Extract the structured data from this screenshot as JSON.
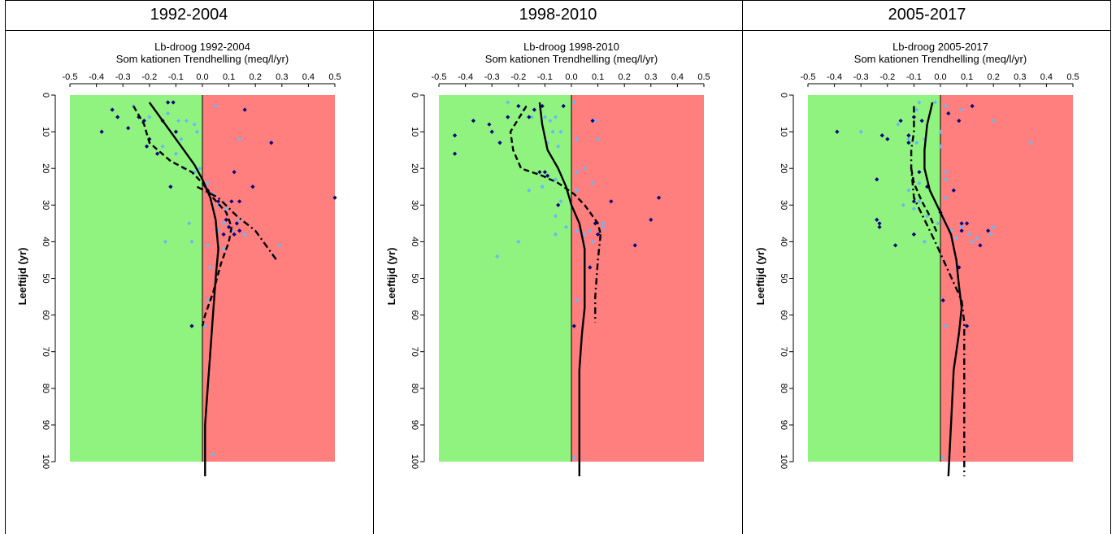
{
  "headers": [
    "1992-2004",
    "1998-2010",
    "2005-2017"
  ],
  "colors": {
    "negative_zone": "#90f37f",
    "positive_zone": "#ff7e7e",
    "light_points": "#69b8f7",
    "dark_points": "#00007f"
  },
  "chart_data": [
    {
      "type": "scatter",
      "title": "Lb-droog 1992-2004",
      "subtitle": "Som kationen Trendhelling (meq/l/yr)",
      "ylabel": "Leeftijd (yr)",
      "xlim": [
        -0.5,
        0.5
      ],
      "ylim": [
        0,
        100
      ],
      "xticks": [
        "-0.5",
        "-0.4",
        "-0.3",
        "-0.2",
        "-0.1",
        "0.0",
        "0.1",
        "0.2",
        "0.3",
        "0.4",
        "0.5"
      ],
      "yticks": [
        "0",
        "10",
        "20",
        "30",
        "40",
        "50",
        "60",
        "70",
        "80",
        "90",
        "100"
      ],
      "light_points": [
        [
          -0.26,
          3
        ],
        [
          -0.2,
          6
        ],
        [
          -0.13,
          5
        ],
        [
          -0.09,
          7
        ],
        [
          -0.06,
          7
        ],
        [
          -0.03,
          8
        ],
        [
          -0.02,
          10
        ],
        [
          -0.08,
          12
        ],
        [
          -0.15,
          14
        ],
        [
          -0.1,
          16
        ],
        [
          -0.07,
          20
        ],
        [
          -0.03,
          21
        ],
        [
          -0.01,
          20
        ],
        [
          0.02,
          24
        ],
        [
          -0.12,
          25
        ],
        [
          0.04,
          27
        ],
        [
          0.06,
          30
        ],
        [
          0.09,
          31
        ],
        [
          0.14,
          34
        ],
        [
          0.08,
          35
        ],
        [
          0.11,
          37
        ],
        [
          0.16,
          38
        ],
        [
          0.06,
          37
        ],
        [
          -0.05,
          35
        ],
        [
          -0.04,
          40
        ],
        [
          -0.14,
          40
        ],
        [
          0.02,
          41
        ],
        [
          0.29,
          41
        ],
        [
          0.27,
          44
        ],
        [
          0.03,
          47
        ],
        [
          0.02,
          56
        ],
        [
          0.01,
          63
        ],
        [
          0.04,
          98
        ],
        [
          0.05,
          3
        ],
        [
          0.14,
          12
        ],
        [
          0.08,
          42
        ]
      ],
      "dark_points": [
        [
          -0.38,
          10
        ],
        [
          -0.34,
          4
        ],
        [
          -0.32,
          6
        ],
        [
          -0.28,
          9
        ],
        [
          -0.24,
          6
        ],
        [
          -0.22,
          7
        ],
        [
          -0.2,
          12
        ],
        [
          -0.21,
          14
        ],
        [
          -0.17,
          16
        ],
        [
          -0.15,
          7
        ],
        [
          -0.13,
          2
        ],
        [
          -0.11,
          2
        ],
        [
          -0.1,
          10
        ],
        [
          0.16,
          4
        ],
        [
          0.26,
          13
        ],
        [
          0.12,
          21
        ],
        [
          0.19,
          25
        ],
        [
          -0.12,
          25
        ],
        [
          0.02,
          26
        ],
        [
          0.06,
          29
        ],
        [
          0.11,
          29
        ],
        [
          0.14,
          29
        ],
        [
          0.09,
          34
        ],
        [
          0.1,
          36
        ],
        [
          0.13,
          35
        ],
        [
          0.14,
          37
        ],
        [
          0.12,
          38
        ],
        [
          0.08,
          38
        ],
        [
          0.5,
          28
        ],
        [
          -0.04,
          63
        ]
      ],
      "series": [
        {
          "style": "solid",
          "points": [
            [
              -0.2,
              2
            ],
            [
              -0.14,
              8
            ],
            [
              -0.08,
              14
            ],
            [
              -0.03,
              19
            ],
            [
              0.0,
              23
            ],
            [
              0.03,
              28
            ],
            [
              0.05,
              34
            ],
            [
              0.06,
              42
            ],
            [
              0.05,
              50
            ],
            [
              0.04,
              60
            ],
            [
              0.03,
              70
            ],
            [
              0.02,
              80
            ],
            [
              0.01,
              90
            ],
            [
              0.01,
              104
            ]
          ]
        },
        {
          "style": "dashed",
          "points": [
            [
              -0.26,
              3
            ],
            [
              -0.22,
              8
            ],
            [
              -0.2,
              13
            ],
            [
              -0.12,
              18
            ],
            [
              -0.04,
              21
            ],
            [
              0.0,
              24
            ],
            [
              0.04,
              28
            ],
            [
              0.09,
              32
            ],
            [
              0.11,
              36
            ],
            [
              0.1,
              40
            ],
            [
              0.07,
              46
            ],
            [
              0.04,
              54
            ],
            [
              0.01,
              60
            ],
            [
              0.0,
              63
            ]
          ]
        },
        {
          "style": "dashdot",
          "points": [
            [
              -0.02,
              25
            ],
            [
              0.06,
              28
            ],
            [
              0.13,
              33
            ],
            [
              0.2,
              37
            ],
            [
              0.25,
              42
            ],
            [
              0.28,
              45
            ]
          ]
        }
      ]
    },
    {
      "type": "scatter",
      "title": "Lb-droog 1998-2010",
      "subtitle": "Som kationen Trendhelling (meq/l/yr)",
      "ylabel": "Leeftijd (yr)",
      "xlim": [
        -0.5,
        0.5
      ],
      "ylim": [
        0,
        100
      ],
      "xticks": [
        "-0.5",
        "-0.4",
        "-0.3",
        "-0.2",
        "-0.1",
        "0.0",
        "0.1",
        "0.2",
        "0.3",
        "0.4",
        "0.5"
      ],
      "yticks": [
        "0",
        "10",
        "20",
        "30",
        "40",
        "50",
        "60",
        "70",
        "80",
        "90",
        "100"
      ],
      "light_points": [
        [
          -0.24,
          2
        ],
        [
          -0.18,
          4
        ],
        [
          -0.15,
          6
        ],
        [
          -0.1,
          6
        ],
        [
          -0.08,
          7
        ],
        [
          -0.06,
          6
        ],
        [
          -0.07,
          10
        ],
        [
          -0.09,
          13
        ],
        [
          -0.05,
          14
        ],
        [
          -0.04,
          10
        ],
        [
          0.02,
          12
        ],
        [
          0.1,
          12
        ],
        [
          0.05,
          20
        ],
        [
          0.02,
          21
        ],
        [
          0.08,
          24
        ],
        [
          -0.06,
          23
        ],
        [
          -0.11,
          25
        ],
        [
          -0.16,
          26
        ],
        [
          0.02,
          26
        ],
        [
          -0.04,
          29
        ],
        [
          -0.06,
          33
        ],
        [
          -0.02,
          36
        ],
        [
          0.02,
          37
        ],
        [
          0.05,
          38
        ],
        [
          0.07,
          37
        ],
        [
          0.08,
          40
        ],
        [
          0.12,
          36
        ],
        [
          0.12,
          35
        ],
        [
          -0.06,
          38
        ],
        [
          -0.2,
          40
        ],
        [
          -0.28,
          44
        ],
        [
          0.05,
          41
        ],
        [
          0.02,
          56
        ],
        [
          0.01,
          63
        ],
        [
          0.01,
          99
        ],
        [
          0.09,
          7
        ],
        [
          0.01,
          2
        ]
      ],
      "dark_points": [
        [
          -0.44,
          11
        ],
        [
          -0.44,
          16
        ],
        [
          -0.37,
          7
        ],
        [
          -0.31,
          8
        ],
        [
          -0.3,
          10
        ],
        [
          -0.27,
          13
        ],
        [
          -0.24,
          6
        ],
        [
          -0.2,
          3
        ],
        [
          -0.16,
          6
        ],
        [
          -0.11,
          3
        ],
        [
          -0.14,
          4
        ],
        [
          -0.03,
          3
        ],
        [
          -0.1,
          21
        ],
        [
          -0.09,
          22
        ],
        [
          -0.12,
          21
        ],
        [
          -0.05,
          30
        ],
        [
          0.08,
          7
        ],
        [
          0.15,
          29
        ],
        [
          0.33,
          28
        ],
        [
          0.3,
          34
        ],
        [
          0.09,
          35
        ],
        [
          0.1,
          38
        ],
        [
          0.24,
          41
        ],
        [
          0.07,
          47
        ],
        [
          0.01,
          63
        ]
      ],
      "series": [
        {
          "style": "solid",
          "points": [
            [
              -0.12,
              2
            ],
            [
              -0.11,
              8
            ],
            [
              -0.09,
              15
            ],
            [
              -0.05,
              20
            ],
            [
              -0.02,
              25
            ],
            [
              0.0,
              30
            ],
            [
              0.03,
              35
            ],
            [
              0.05,
              42
            ],
            [
              0.05,
              50
            ],
            [
              0.05,
              58
            ],
            [
              0.04,
              65
            ],
            [
              0.03,
              75
            ],
            [
              0.03,
              90
            ],
            [
              0.03,
              104
            ]
          ]
        },
        {
          "style": "dashed",
          "points": [
            [
              -0.17,
              3
            ],
            [
              -0.23,
              10
            ],
            [
              -0.22,
              15
            ],
            [
              -0.19,
              20
            ],
            [
              -0.11,
              22
            ],
            [
              -0.05,
              24
            ],
            [
              0.01,
              27
            ],
            [
              0.05,
              30
            ],
            [
              0.1,
              35
            ],
            [
              0.11,
              38
            ]
          ]
        },
        {
          "style": "dashdot",
          "points": [
            [
              0.11,
              38
            ],
            [
              0.1,
              45
            ],
            [
              0.09,
              55
            ],
            [
              0.09,
              62
            ]
          ]
        }
      ]
    },
    {
      "type": "scatter",
      "title": "Lb-droog 2005-2017",
      "subtitle": "Som kationen Trendhelling (meq/l/yr)",
      "ylabel": "Leeftijd (yr)",
      "xlim": [
        -0.5,
        0.5
      ],
      "ylim": [
        0,
        100
      ],
      "xticks": [
        "-0.5",
        "-0.4",
        "-0.3",
        "-0.2",
        "-0.1",
        "0.0",
        "0.1",
        "0.2",
        "0.3",
        "0.4",
        "0.5"
      ],
      "yticks": [
        "0",
        "10",
        "20",
        "30",
        "40",
        "50",
        "60",
        "70",
        "80",
        "90",
        "100"
      ],
      "light_points": [
        [
          -0.08,
          2
        ],
        [
          -0.09,
          4
        ],
        [
          -0.1,
          6
        ],
        [
          -0.07,
          7
        ],
        [
          -0.02,
          2
        ],
        [
          0.02,
          3
        ],
        [
          0.08,
          4
        ],
        [
          0.2,
          7
        ],
        [
          -0.16,
          8
        ],
        [
          -0.3,
          10
        ],
        [
          -0.12,
          12
        ],
        [
          -0.09,
          13
        ],
        [
          -0.06,
          12
        ],
        [
          0.0,
          10
        ],
        [
          0.0,
          14
        ],
        [
          0.02,
          21
        ],
        [
          0.02,
          23
        ],
        [
          -0.08,
          24
        ],
        [
          -0.12,
          26
        ],
        [
          0.02,
          28
        ],
        [
          -0.08,
          29
        ],
        [
          -0.1,
          31
        ],
        [
          -0.14,
          30
        ],
        [
          -0.05,
          33
        ],
        [
          -0.01,
          35
        ],
        [
          0.04,
          37
        ],
        [
          0.08,
          36
        ],
        [
          0.11,
          38
        ],
        [
          0.12,
          40
        ],
        [
          0.14,
          39
        ],
        [
          0.19,
          38
        ],
        [
          0.2,
          36
        ],
        [
          0.34,
          13
        ],
        [
          0.06,
          39
        ],
        [
          -0.06,
          40
        ],
        [
          0.02,
          63
        ],
        [
          0.01,
          99
        ]
      ],
      "dark_points": [
        [
          -0.39,
          10
        ],
        [
          -0.22,
          11
        ],
        [
          -0.2,
          12
        ],
        [
          -0.15,
          7
        ],
        [
          -0.1,
          6
        ],
        [
          -0.07,
          7
        ],
        [
          -0.12,
          11
        ],
        [
          -0.12,
          13
        ],
        [
          0.03,
          5
        ],
        [
          0.07,
          7
        ],
        [
          0.12,
          3
        ],
        [
          -0.24,
          23
        ],
        [
          -0.24,
          34
        ],
        [
          -0.23,
          35
        ],
        [
          -0.23,
          36
        ],
        [
          -0.17,
          41
        ],
        [
          -0.1,
          38
        ],
        [
          -0.1,
          29
        ],
        [
          -0.08,
          21
        ],
        [
          -0.05,
          25
        ],
        [
          0.0,
          32
        ],
        [
          0.05,
          26
        ],
        [
          0.08,
          35
        ],
        [
          0.08,
          37
        ],
        [
          0.1,
          35
        ],
        [
          0.18,
          37
        ],
        [
          0.15,
          41
        ],
        [
          0.07,
          47
        ],
        [
          0.01,
          56
        ],
        [
          0.1,
          63
        ]
      ],
      "series": [
        {
          "style": "solid",
          "points": [
            [
              -0.03,
              2
            ],
            [
              -0.05,
              8
            ],
            [
              -0.06,
              15
            ],
            [
              -0.06,
              20
            ],
            [
              -0.04,
              26
            ],
            [
              0.0,
              32
            ],
            [
              0.04,
              38
            ],
            [
              0.06,
              45
            ],
            [
              0.07,
              52
            ],
            [
              0.08,
              58
            ],
            [
              0.07,
              65
            ],
            [
              0.05,
              75
            ],
            [
              0.04,
              90
            ],
            [
              0.03,
              104
            ]
          ]
        },
        {
          "style": "dashed",
          "points": [
            [
              -0.11,
              20
            ],
            [
              -0.1,
              24
            ],
            [
              -0.07,
              29
            ],
            [
              -0.04,
              33
            ],
            [
              -0.01,
              38
            ]
          ]
        },
        {
          "style": "dashdot",
          "points": [
            [
              -0.1,
              3
            ],
            [
              -0.1,
              10
            ],
            [
              -0.11,
              15
            ],
            [
              -0.11,
              20
            ],
            [
              -0.1,
              28
            ],
            [
              -0.06,
              34
            ],
            [
              -0.02,
              40
            ],
            [
              0.03,
              48
            ],
            [
              0.08,
              56
            ],
            [
              0.09,
              62
            ],
            [
              0.09,
              75
            ],
            [
              0.09,
              90
            ],
            [
              0.09,
              104
            ]
          ]
        }
      ]
    }
  ]
}
